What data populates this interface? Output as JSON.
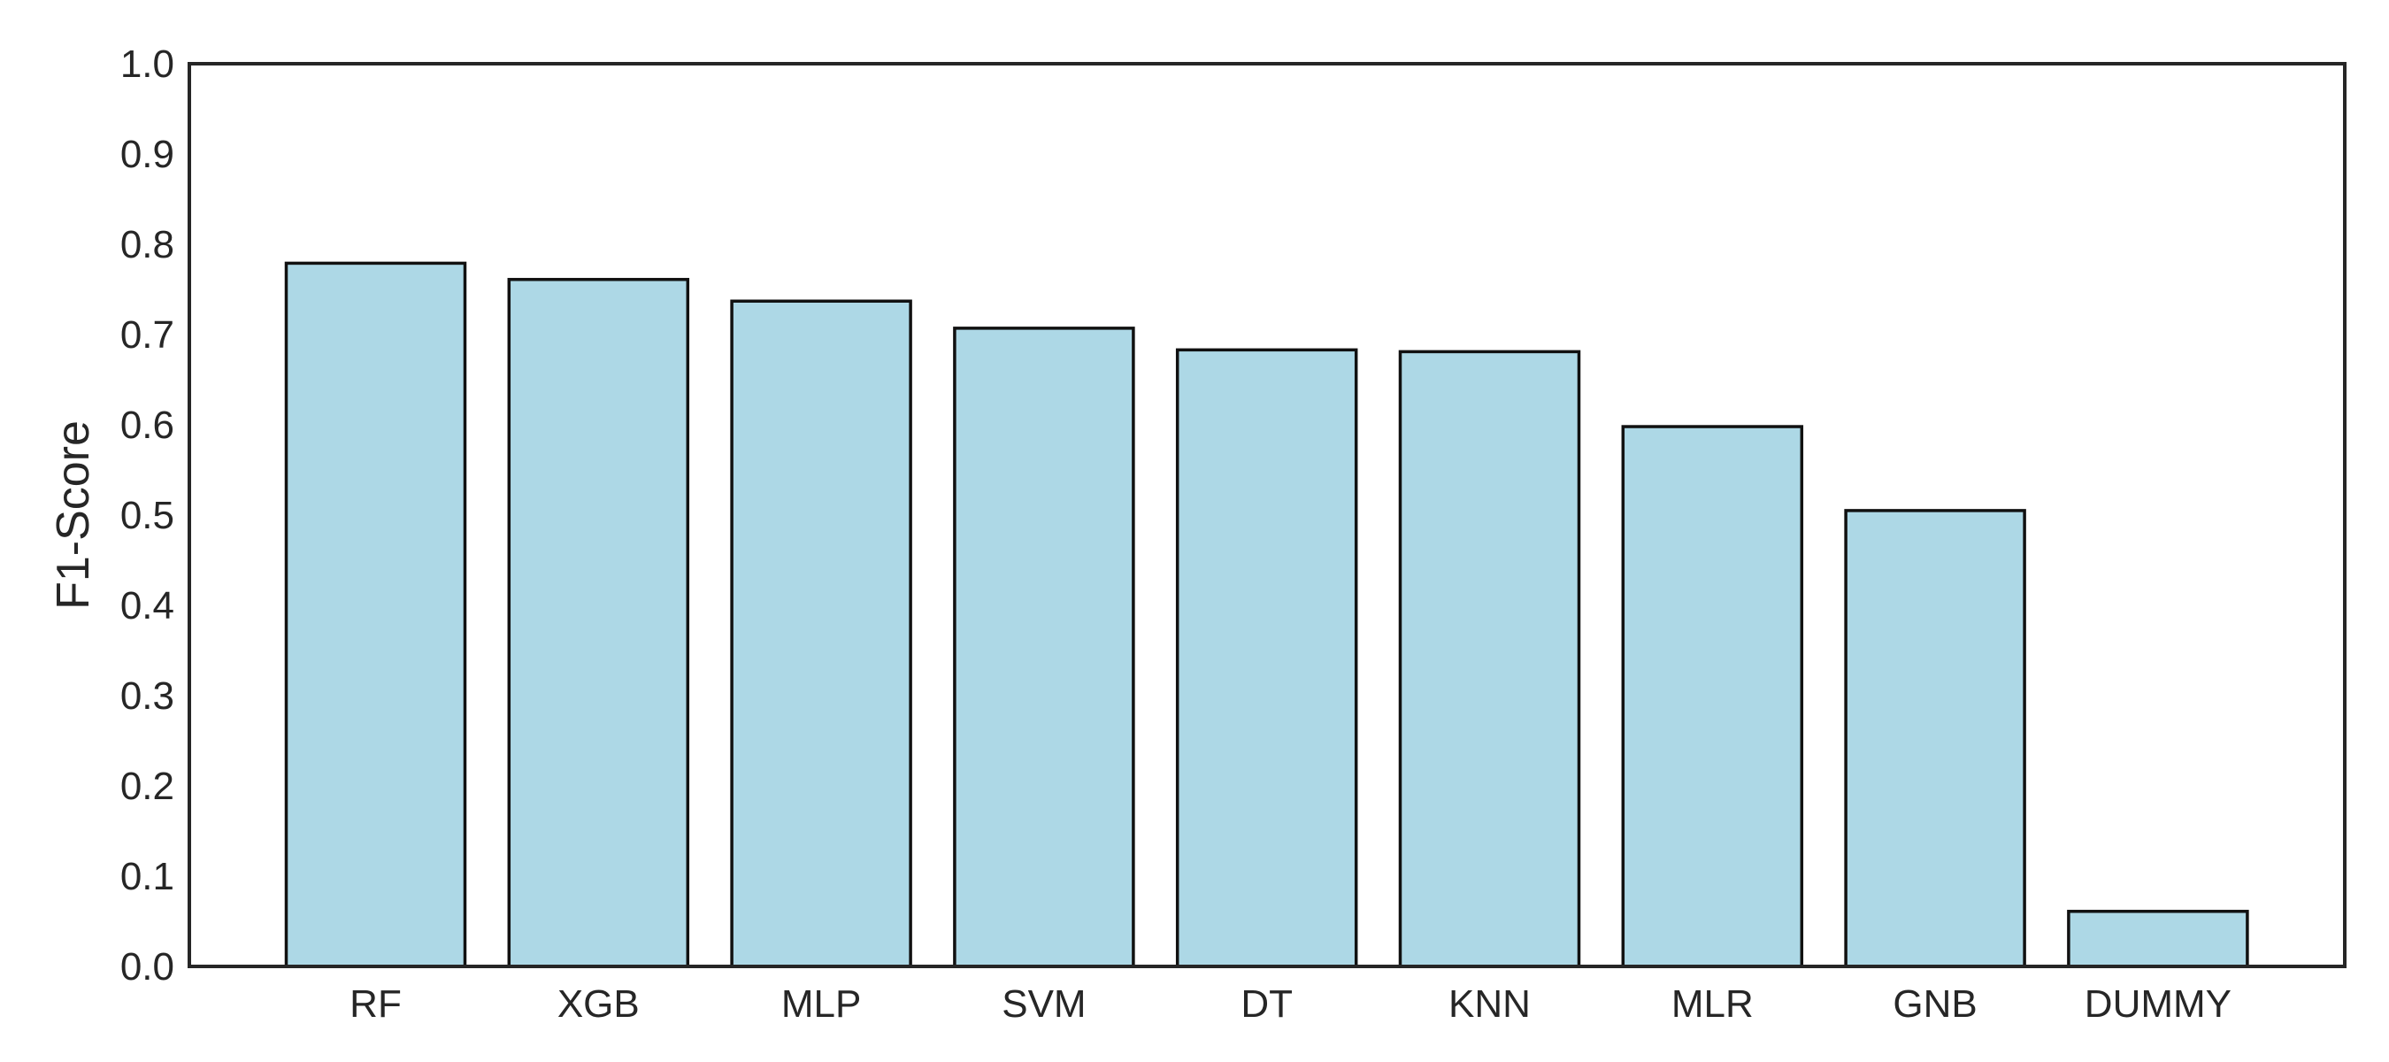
{
  "chart_data": {
    "type": "bar",
    "title": "",
    "xlabel": "",
    "ylabel": "F1-Score",
    "categories": [
      "RF",
      "XGB",
      "MLP",
      "SVM",
      "DT",
      "KNN",
      "MLR",
      "GNB",
      "DUMMY"
    ],
    "values": [
      0.779,
      0.761,
      0.737,
      0.707,
      0.683,
      0.681,
      0.598,
      0.505,
      0.061
    ],
    "ylim": [
      0.0,
      1.0
    ],
    "yticks": [
      "0.0",
      "0.1",
      "0.2",
      "0.3",
      "0.4",
      "0.5",
      "0.6",
      "0.7",
      "0.8",
      "0.9",
      "1.0"
    ],
    "grid": false,
    "legend": "none",
    "bar_color": "#add8e6",
    "edge_color": "#111111",
    "axis_color": "#262626"
  }
}
